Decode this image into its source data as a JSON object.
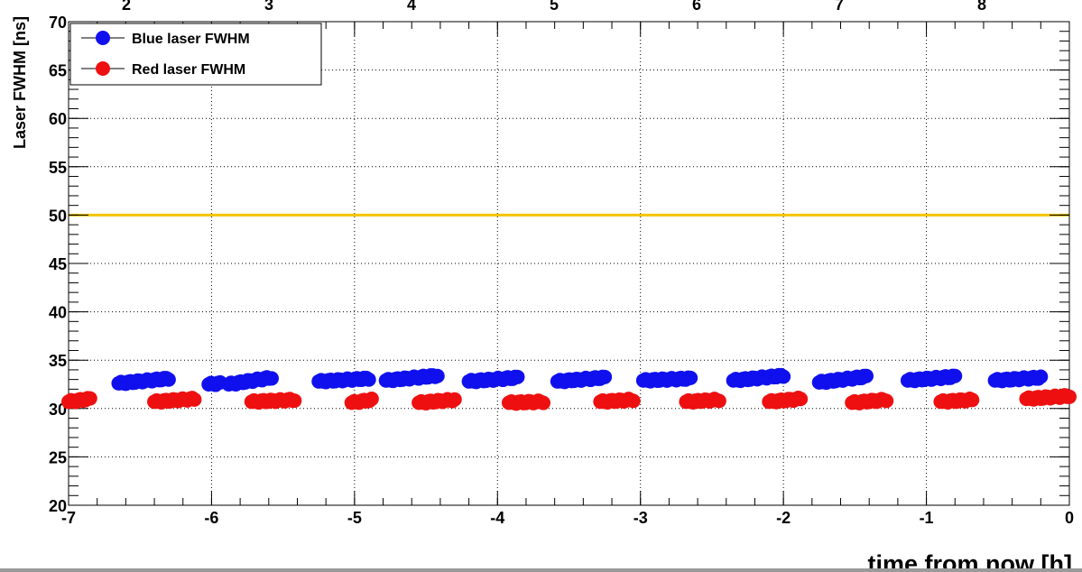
{
  "chart_data": {
    "type": "scatter",
    "xlabel": "time from now [h]",
    "ylabel": "Laser FWHM [ns]",
    "xlim": [
      -7,
      0
    ],
    "ylim": [
      20,
      70
    ],
    "x_ticks": [
      "-7",
      "-6",
      "-5",
      "-4",
      "-3",
      "-2",
      "-1",
      "0"
    ],
    "y_ticks": [
      "20",
      "25",
      "30",
      "35",
      "40",
      "45",
      "50",
      "55",
      "60",
      "65",
      "70"
    ],
    "top_axis_ticks": [
      "2",
      "3",
      "4",
      "5",
      "6",
      "7",
      "8"
    ],
    "grid": true,
    "legend_position": "top-left",
    "threshold_line": {
      "y": 50,
      "color": "#f5c400"
    },
    "series": [
      {
        "name": "Blue laser FWHM",
        "color": "#1010ee",
        "clusters": [
          {
            "x_start": -6.65,
            "x_end": -6.3,
            "y_start": 32.6,
            "y_end": 33.1
          },
          {
            "x_start": -6.02,
            "x_end": -5.94,
            "y_start": 32.5,
            "y_end": 32.6
          },
          {
            "x_start": -5.88,
            "x_end": -5.58,
            "y_start": 32.5,
            "y_end": 33.2
          },
          {
            "x_start": -5.25,
            "x_end": -4.9,
            "y_start": 32.8,
            "y_end": 33.1
          },
          {
            "x_start": -4.78,
            "x_end": -4.42,
            "y_start": 32.9,
            "y_end": 33.4
          },
          {
            "x_start": -4.2,
            "x_end": -3.86,
            "y_start": 32.8,
            "y_end": 33.2
          },
          {
            "x_start": -3.58,
            "x_end": -3.25,
            "y_start": 32.8,
            "y_end": 33.2
          },
          {
            "x_start": -2.98,
            "x_end": -2.65,
            "y_start": 32.9,
            "y_end": 33.1
          },
          {
            "x_start": -2.35,
            "x_end": -2.0,
            "y_start": 32.9,
            "y_end": 33.4
          },
          {
            "x_start": -1.75,
            "x_end": -1.42,
            "y_start": 32.7,
            "y_end": 33.3
          },
          {
            "x_start": -1.13,
            "x_end": -0.8,
            "y_start": 32.9,
            "y_end": 33.3
          },
          {
            "x_start": -0.52,
            "x_end": -0.2,
            "y_start": 32.9,
            "y_end": 33.2
          }
        ]
      },
      {
        "name": "Red laser FWHM",
        "color": "#ee1010",
        "clusters": [
          {
            "x_start": -7.0,
            "x_end": -6.85,
            "y_start": 30.7,
            "y_end": 31.0
          },
          {
            "x_start": -6.4,
            "x_end": -6.12,
            "y_start": 30.7,
            "y_end": 31.0
          },
          {
            "x_start": -5.72,
            "x_end": -5.42,
            "y_start": 30.7,
            "y_end": 30.9
          },
          {
            "x_start": -5.02,
            "x_end": -4.88,
            "y_start": 30.6,
            "y_end": 30.9
          },
          {
            "x_start": -4.55,
            "x_end": -4.3,
            "y_start": 30.6,
            "y_end": 30.9
          },
          {
            "x_start": -3.92,
            "x_end": -3.68,
            "y_start": 30.6,
            "y_end": 30.7
          },
          {
            "x_start": -3.28,
            "x_end": -3.05,
            "y_start": 30.7,
            "y_end": 30.9
          },
          {
            "x_start": -2.68,
            "x_end": -2.45,
            "y_start": 30.7,
            "y_end": 30.9
          },
          {
            "x_start": -2.1,
            "x_end": -1.88,
            "y_start": 30.7,
            "y_end": 31.0
          },
          {
            "x_start": -1.52,
            "x_end": -1.28,
            "y_start": 30.6,
            "y_end": 30.9
          },
          {
            "x_start": -0.9,
            "x_end": -0.68,
            "y_start": 30.7,
            "y_end": 30.9
          },
          {
            "x_start": -0.3,
            "x_end": 0.0,
            "y_start": 31.0,
            "y_end": 31.3
          }
        ]
      }
    ]
  }
}
